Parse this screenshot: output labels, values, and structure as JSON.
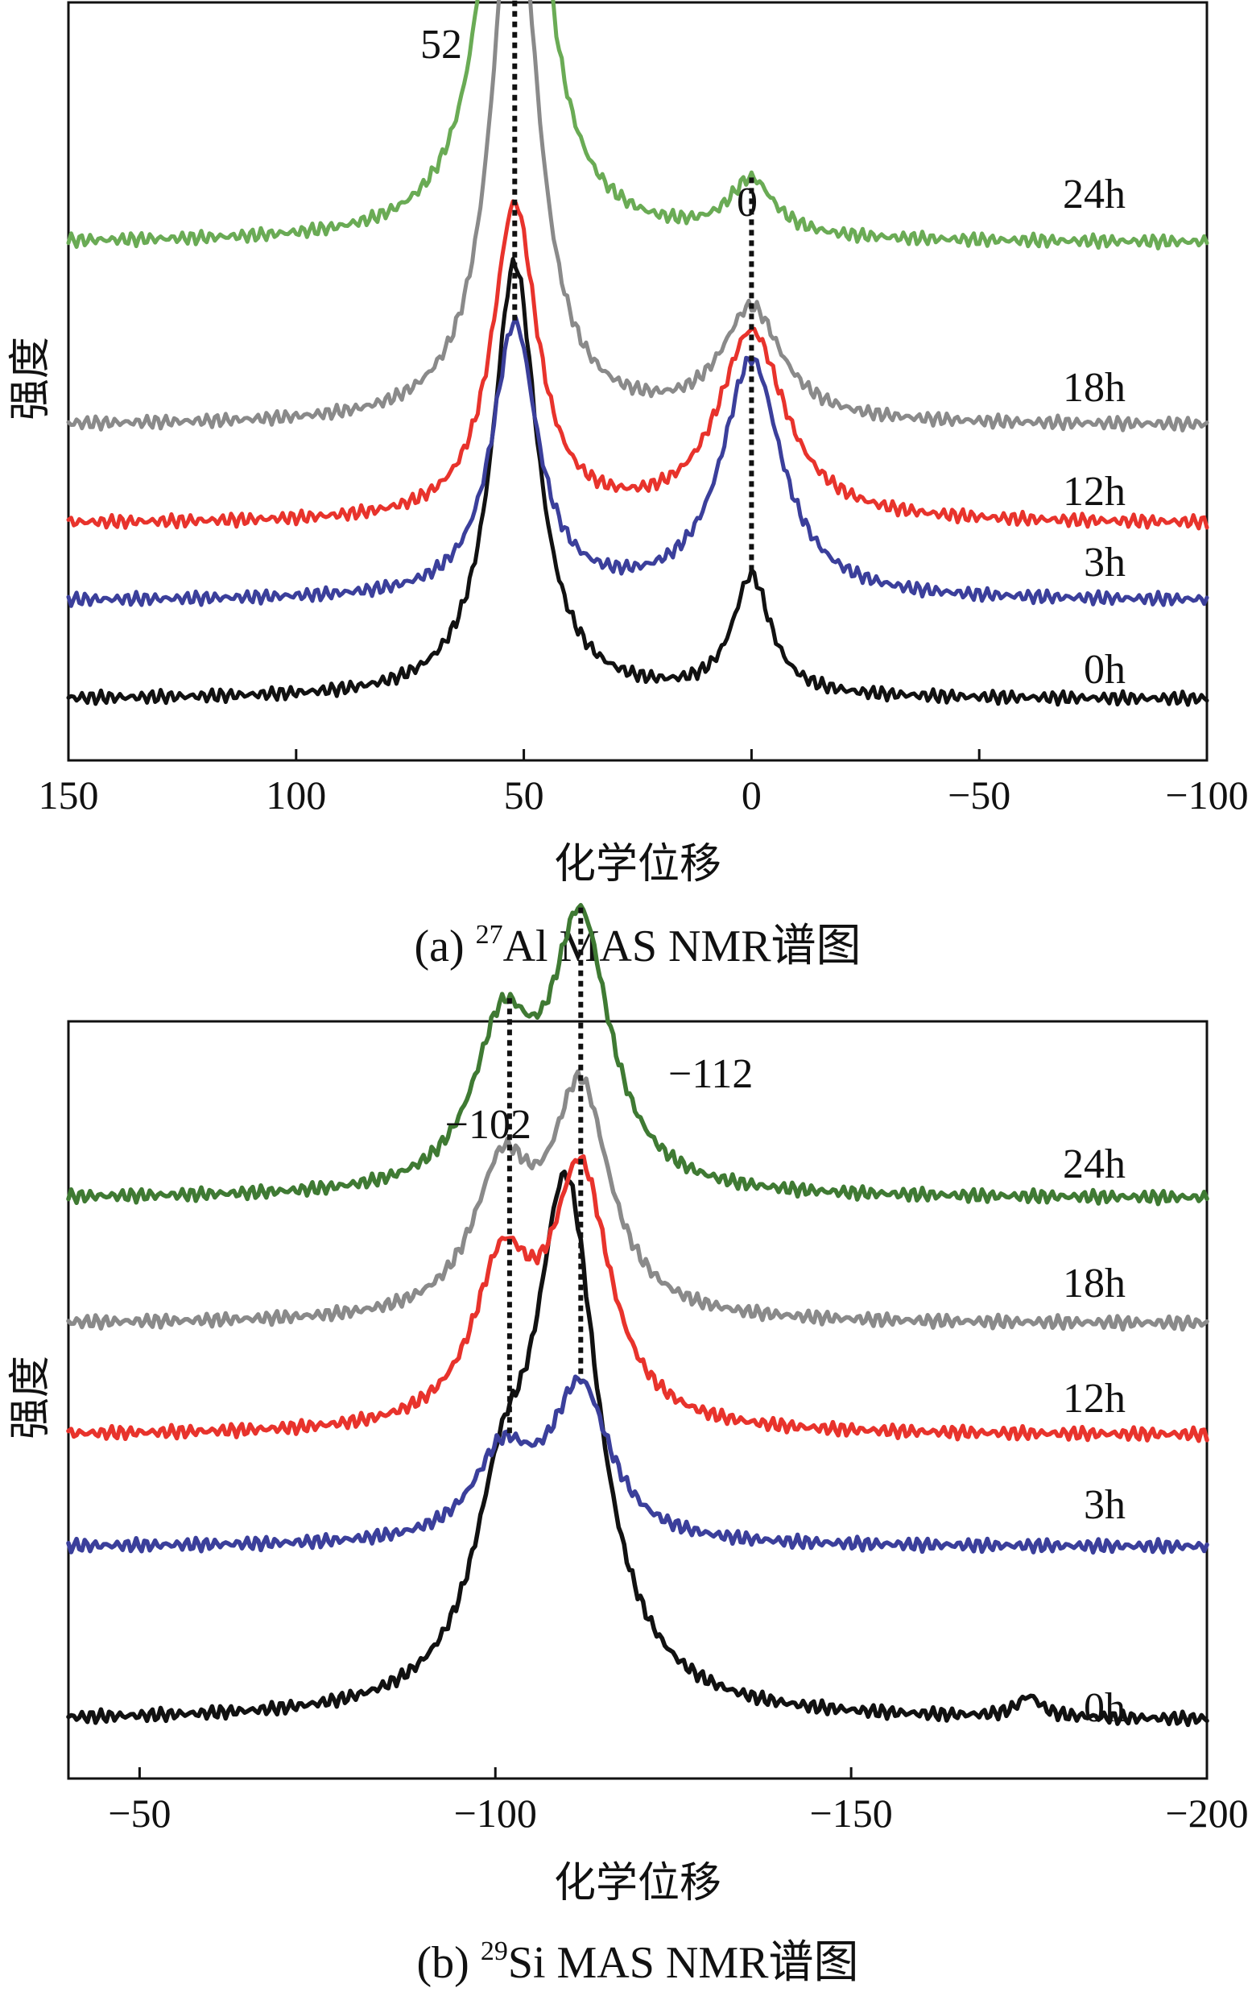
{
  "chart_data": [
    {
      "type": "line",
      "panel": "a",
      "caption": {
        "prefix": "(a) ",
        "isotope_mass": "27",
        "element": "Al",
        "rest": " MAS NMR谱图"
      },
      "xlabel": "化学位移",
      "ylabel": "强度",
      "xlim": [
        150,
        -100
      ],
      "xticks": [
        150,
        100,
        50,
        0,
        -50,
        -100
      ],
      "xtick_labels": [
        "150",
        "100",
        "50",
        "0",
        "−50",
        "−100"
      ],
      "peak_labels": [
        {
          "position": 52,
          "text": "52"
        },
        {
          "position": 0,
          "text": "0"
        }
      ],
      "series": [
        {
          "name": "0h",
          "color": "#111111",
          "baseline": 0.05,
          "peaks": [
            [
              52,
              0.62,
              6
            ],
            [
              0,
              0.17,
              5
            ]
          ]
        },
        {
          "name": "3h",
          "color": "#3b3f9b",
          "baseline": 0.19,
          "peaks": [
            [
              52,
              0.39,
              6
            ],
            [
              0,
              0.34,
              8
            ]
          ]
        },
        {
          "name": "12h",
          "color": "#e8332c",
          "baseline": 0.3,
          "peaks": [
            [
              52,
              0.45,
              6
            ],
            [
              0,
              0.27,
              9
            ]
          ]
        },
        {
          "name": "18h",
          "color": "#8a8a8a",
          "baseline": 0.44,
          "peaks": [
            [
              52,
              0.8,
              6
            ],
            [
              0,
              0.16,
              8
            ]
          ]
        },
        {
          "name": "24h",
          "color": "#6aab55",
          "baseline": 0.7,
          "peaks": [
            [
              52,
              1.0,
              6
            ],
            [
              0,
              0.08,
              6
            ]
          ]
        }
      ]
    },
    {
      "type": "line",
      "panel": "b",
      "caption": {
        "prefix": "(b) ",
        "isotope_mass": "29",
        "element": "Si",
        "rest": " MAS NMR谱图"
      },
      "xlabel": "化学位移",
      "ylabel": "强度",
      "xlim": [
        -40,
        -200
      ],
      "xticks": [
        -50,
        -100,
        -150,
        -200
      ],
      "xtick_labels": [
        "−50",
        "−100",
        "−150",
        "−200"
      ],
      "peak_labels": [
        {
          "position": -102,
          "text": "−102"
        },
        {
          "position": -112,
          "text": "−112"
        }
      ],
      "series": [
        {
          "name": "0h",
          "color": "#111111",
          "baseline": 0.05,
          "peaks": [
            [
              -101,
              0.23,
              5
            ],
            [
              -110,
              0.73,
              5.5
            ],
            [
              -175,
              0.03,
              2
            ]
          ]
        },
        {
          "name": "3h",
          "color": "#3b3f9b",
          "baseline": 0.3,
          "peaks": [
            [
              -101,
              0.12,
              5
            ],
            [
              -112,
              0.22,
              5
            ]
          ]
        },
        {
          "name": "12h",
          "color": "#e8332c",
          "baseline": 0.46,
          "peaks": [
            [
              -101,
              0.22,
              5
            ],
            [
              -112,
              0.36,
              5
            ]
          ]
        },
        {
          "name": "18h",
          "color": "#8a8a8a",
          "baseline": 0.62,
          "peaks": [
            [
              -101,
              0.2,
              5
            ],
            [
              -112,
              0.32,
              5
            ]
          ]
        },
        {
          "name": "24h",
          "color": "#3f7a33",
          "baseline": 0.8,
          "peaks": [
            [
              -101,
              0.22,
              5
            ],
            [
              -112,
              0.38,
              5
            ]
          ]
        }
      ]
    }
  ]
}
